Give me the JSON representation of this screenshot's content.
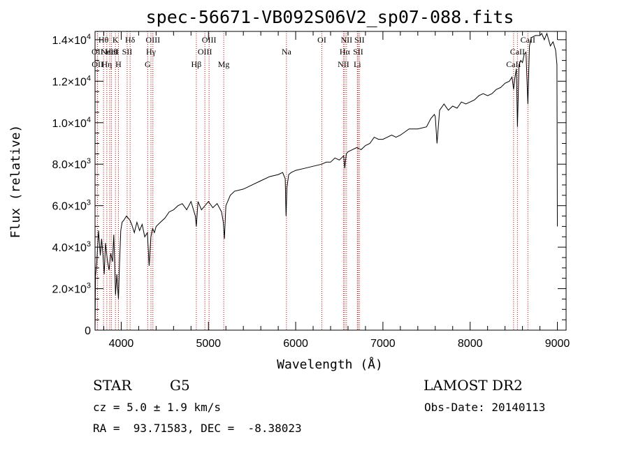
{
  "chart_data": {
    "type": "line",
    "title": "spec-56671-VB092S06V2_sp07-088.fits",
    "xlabel": "Wavelength (Å)",
    "ylabel": "Flux (relative)",
    "xlim": [
      3700,
      9100
    ],
    "ylim": [
      0,
      14400
    ],
    "grid": false,
    "x_ticks": [
      4000,
      5000,
      6000,
      7000,
      8000,
      9000
    ],
    "x_tick_labels": [
      "4000",
      "5000",
      "6000",
      "7000",
      "8000",
      "9000"
    ],
    "y_ticks": [
      {
        "value": 0,
        "mantissa": "0",
        "exp": ""
      },
      {
        "value": 2000,
        "mantissa": "2.0×10",
        "exp": "3"
      },
      {
        "value": 4000,
        "mantissa": "4.0×10",
        "exp": "3"
      },
      {
        "value": 6000,
        "mantissa": "6.0×10",
        "exp": "3"
      },
      {
        "value": 8000,
        "mantissa": "8.0×10",
        "exp": "3"
      },
      {
        "value": 10000,
        "mantissa": "1.0×10",
        "exp": "4"
      },
      {
        "value": 12000,
        "mantissa": "1.2×10",
        "exp": "4"
      },
      {
        "value": 14000,
        "mantissa": "1.4×10",
        "exp": "4"
      }
    ],
    "series": [
      {
        "color": "#000000",
        "x": [
          3700,
          3705,
          3720,
          3740,
          3760,
          3775,
          3790,
          3805,
          3820,
          3840,
          3860,
          3880,
          3900,
          3915,
          3925,
          3935,
          3950,
          3968,
          3980,
          3995,
          4010,
          4030,
          4060,
          4080,
          4100,
          4120,
          4150,
          4180,
          4210,
          4240,
          4270,
          4300,
          4320,
          4340,
          4360,
          4380,
          4400,
          4450,
          4500,
          4550,
          4600,
          4650,
          4700,
          4750,
          4800,
          4850,
          4861,
          4880,
          4920,
          4960,
          5000,
          5050,
          5100,
          5150,
          5170,
          5183,
          5200,
          5250,
          5300,
          5400,
          5500,
          5600,
          5700,
          5800,
          5850,
          5880,
          5890,
          5900,
          5920,
          5950,
          6000,
          6100,
          6200,
          6300,
          6350,
          6400,
          6450,
          6500,
          6550,
          6563,
          6580,
          6600,
          6650,
          6700,
          6750,
          6800,
          6850,
          6900,
          6950,
          7000,
          7050,
          7100,
          7150,
          7200,
          7300,
          7400,
          7500,
          7550,
          7590,
          7600,
          7620,
          7650,
          7700,
          7750,
          7800,
          7850,
          7900,
          7950,
          8000,
          8050,
          8100,
          8150,
          8200,
          8250,
          8300,
          8350,
          8400,
          8450,
          8480,
          8498,
          8510,
          8530,
          8542,
          8560,
          8580,
          8600,
          8620,
          8640,
          8662,
          8680,
          8700,
          8750,
          8800,
          8820,
          8850,
          8880,
          8900,
          8920,
          8950,
          8980,
          8995,
          9000
        ],
        "y": [
          0,
          2600,
          3300,
          4800,
          3600,
          4400,
          3700,
          2700,
          4200,
          3400,
          2900,
          3700,
          3300,
          4600,
          3200,
          1700,
          2700,
          1500,
          3100,
          4800,
          5200,
          5300,
          5500,
          5400,
          5300,
          5100,
          4700,
          5200,
          4800,
          5100,
          4500,
          4700,
          3100,
          4500,
          4900,
          4700,
          5000,
          5200,
          5400,
          5700,
          5800,
          6000,
          6100,
          5800,
          6200,
          5500,
          5000,
          6200,
          5800,
          6000,
          6200,
          5900,
          6100,
          5700,
          5200,
          4400,
          6000,
          6500,
          6700,
          6800,
          7000,
          7200,
          7400,
          7500,
          7600,
          7300,
          5500,
          6900,
          7500,
          7600,
          7700,
          7800,
          7900,
          8000,
          8100,
          8100,
          8300,
          8200,
          8400,
          7800,
          8500,
          8600,
          8700,
          8800,
          8700,
          8900,
          9000,
          9300,
          9200,
          9200,
          9300,
          9400,
          9300,
          9400,
          9700,
          9700,
          9800,
          10200,
          10400,
          10300,
          9000,
          10600,
          10900,
          10600,
          10800,
          10700,
          11000,
          10900,
          11000,
          11100,
          11300,
          11400,
          11300,
          11400,
          11600,
          11700,
          11900,
          12000,
          12200,
          11600,
          12100,
          12600,
          9800,
          12800,
          13000,
          12900,
          13300,
          13400,
          10900,
          13700,
          14100,
          14200,
          14200,
          14300,
          14000,
          14300,
          14000,
          13700,
          13900,
          13500,
          12800,
          5000
        ]
      }
    ],
    "line_markers": [
      {
        "wl": 3727,
        "label": "OII",
        "row": 2
      },
      {
        "wl": 3729,
        "label": "OII",
        "row": 3
      },
      {
        "wl": 3797,
        "label": "Hθ",
        "row": 1
      },
      {
        "wl": 3835,
        "label": "Hη",
        "row": 3
      },
      {
        "wl": 3869,
        "label": "NeIII",
        "row": 2
      },
      {
        "wl": 3889,
        "label": "HeI",
        "row": 2
      },
      {
        "wl": 3934,
        "label": "K",
        "row": 1
      },
      {
        "wl": 3968,
        "label": "H",
        "row": 3
      },
      {
        "wl": 4068,
        "label": "SII",
        "row": 2
      },
      {
        "wl": 4102,
        "label": "Hδ",
        "row": 1
      },
      {
        "wl": 4304,
        "label": "G",
        "row": 3
      },
      {
        "wl": 4341,
        "label": "Hγ",
        "row": 2
      },
      {
        "wl": 4363,
        "label": "OIII",
        "row": 1
      },
      {
        "wl": 4861,
        "label": "Hβ",
        "row": 3
      },
      {
        "wl": 4959,
        "label": "OIII",
        "row": 2
      },
      {
        "wl": 5007,
        "label": "OIII",
        "row": 1
      },
      {
        "wl": 5175,
        "label": "Mg",
        "row": 3
      },
      {
        "wl": 5894,
        "label": "Na",
        "row": 2
      },
      {
        "wl": 6300,
        "label": "OI",
        "row": 1
      },
      {
        "wl": 6548,
        "label": "NII",
        "row": 3
      },
      {
        "wl": 6563,
        "label": "Hα",
        "row": 2
      },
      {
        "wl": 6583,
        "label": "NII",
        "row": 1
      },
      {
        "wl": 6707,
        "label": "Li",
        "row": 3
      },
      {
        "wl": 6716,
        "label": "SII",
        "row": 2
      },
      {
        "wl": 6731,
        "label": "SII",
        "row": 1
      },
      {
        "wl": 8498,
        "label": "CaII",
        "row": 3
      },
      {
        "wl": 8542,
        "label": "CaII",
        "row": 2
      },
      {
        "wl": 8662,
        "label": "CaII",
        "row": 1
      }
    ],
    "marker_color": "#cc0000"
  },
  "info": {
    "class": "STAR",
    "subclass": "G5",
    "survey": "LAMOST DR2",
    "cz": "cz = 5.0 ± 1.9 km/s",
    "obs_date": "Obs-Date: 20140113",
    "coords": "RA =  93.71583, DEC =  -8.38023"
  }
}
